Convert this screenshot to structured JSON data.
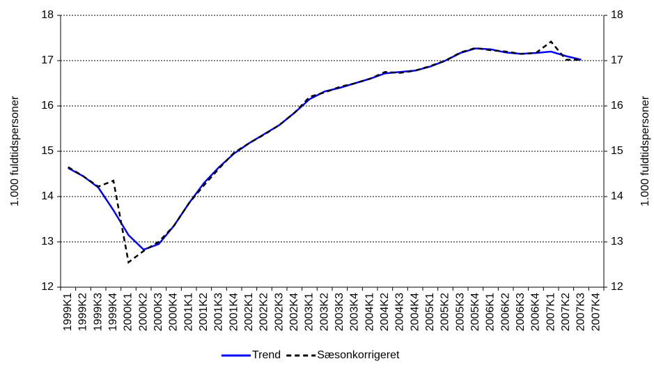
{
  "chart_data": {
    "type": "line",
    "y_label": "1.000 fuldtidspersoner",
    "y2_label": "1.000 fuldtidspersoner",
    "categories": [
      "1999K1",
      "1999K2",
      "1999K3",
      "1999K4",
      "2000K1",
      "2000K2",
      "2000K3",
      "2000K4",
      "2001K1",
      "2001K2",
      "2001K3",
      "2001K4",
      "2002K1",
      "2002K2",
      "2002K3",
      "2002K4",
      "2003K1",
      "2003K2",
      "2003K3",
      "2003K4",
      "2004K1",
      "2004K2",
      "2004K3",
      "2004K4",
      "2005K1",
      "2005K2",
      "2005K3",
      "2005K4",
      "2006K1",
      "2006K2",
      "2006K3",
      "2006K4",
      "2007K1",
      "2007K2",
      "2007K3",
      "2007K4"
    ],
    "series": [
      {
        "name": "Trend",
        "color": "#0000ff",
        "dash": false,
        "values": [
          14.63,
          14.45,
          14.2,
          13.7,
          13.15,
          12.83,
          12.95,
          13.35,
          13.85,
          14.3,
          14.65,
          14.95,
          15.18,
          15.38,
          15.58,
          15.85,
          16.15,
          16.32,
          16.4,
          16.5,
          16.6,
          16.72,
          16.75,
          16.78,
          16.87,
          17.0,
          17.17,
          17.27,
          17.25,
          17.18,
          17.15,
          17.17,
          17.2,
          17.1,
          17.02,
          null
        ]
      },
      {
        "name": "Sæsonkorrigeret",
        "color": "#000000",
        "dash": true,
        "values": [
          14.65,
          14.45,
          14.22,
          14.35,
          12.55,
          12.8,
          13.0,
          13.35,
          13.85,
          14.25,
          14.62,
          14.97,
          15.18,
          15.37,
          15.58,
          15.85,
          16.2,
          16.3,
          16.42,
          16.5,
          16.6,
          16.75,
          16.73,
          16.78,
          16.88,
          17.0,
          17.18,
          17.28,
          17.23,
          17.2,
          17.15,
          17.17,
          17.42,
          17.02,
          17.02,
          null
        ]
      }
    ],
    "ylim": [
      12,
      18
    ],
    "yticks": [
      12,
      13,
      14,
      15,
      16,
      17,
      18
    ],
    "y2lim": [
      12,
      18
    ],
    "y2ticks": [
      12,
      13,
      14,
      15,
      16,
      17,
      18
    ],
    "grid": true,
    "legend": "bottom"
  }
}
